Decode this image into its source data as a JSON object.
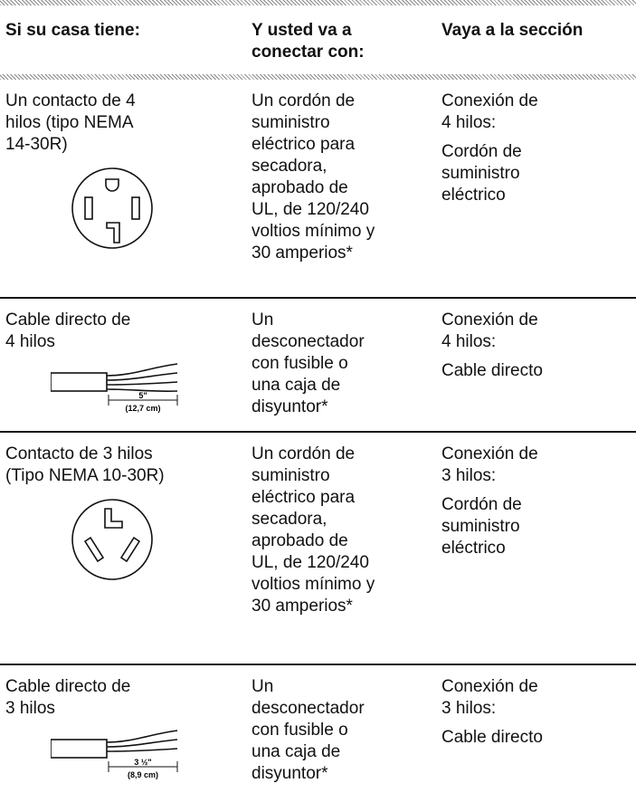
{
  "table": {
    "header": [
      [
        "Si su casa tiene:"
      ],
      [
        "Y usted va a",
        "conectar con:"
      ],
      [
        "Vaya a la sección"
      ]
    ],
    "rows": [
      {
        "have": [
          "Un contacto de 4",
          "hilos (tipo NEMA",
          "14-30R)"
        ],
        "connect": [
          "Un cordón de",
          "suministro",
          "eléctrico para",
          "secadora,",
          "aprobado de",
          "UL, de 120/240",
          "voltios mínimo y",
          "30 amperios*"
        ],
        "section": [
          [
            "Conexión de",
            "4 hilos:"
          ],
          [
            "Cordón de",
            "suministro",
            "eléctrico"
          ]
        ]
      },
      {
        "have": [
          "Cable directo de",
          "4 hilos"
        ],
        "figure_labels": [
          "5\"",
          "(12,7 cm)"
        ],
        "connect": [
          "Un",
          "desconectador",
          "con fusible o",
          "una caja de",
          "disyuntor*"
        ],
        "section": [
          [
            "Conexión de",
            "4 hilos:"
          ],
          [
            "Cable directo"
          ]
        ]
      },
      {
        "have": [
          "Contacto de 3 hilos",
          "(Tipo NEMA 10-30R)"
        ],
        "connect": [
          "Un cordón de",
          "suministro",
          "eléctrico para",
          "secadora,",
          "aprobado de",
          "UL, de 120/240",
          "voltios mínimo y",
          "30 amperios*"
        ],
        "section": [
          [
            "Conexión de",
            "3 hilos:"
          ],
          [
            "Cordón de",
            "suministro",
            "eléctrico"
          ]
        ]
      },
      {
        "have": [
          "Cable directo de",
          "3 hilos"
        ],
        "figure_labels": [
          "3 ½\"",
          "(8,9 cm)"
        ],
        "connect": [
          "Un",
          "desconectador",
          "con fusible o",
          "una caja de",
          "disyuntor*"
        ],
        "section": [
          [
            "Conexión de",
            "3 hilos:"
          ],
          [
            "Cable directo"
          ]
        ]
      }
    ]
  }
}
